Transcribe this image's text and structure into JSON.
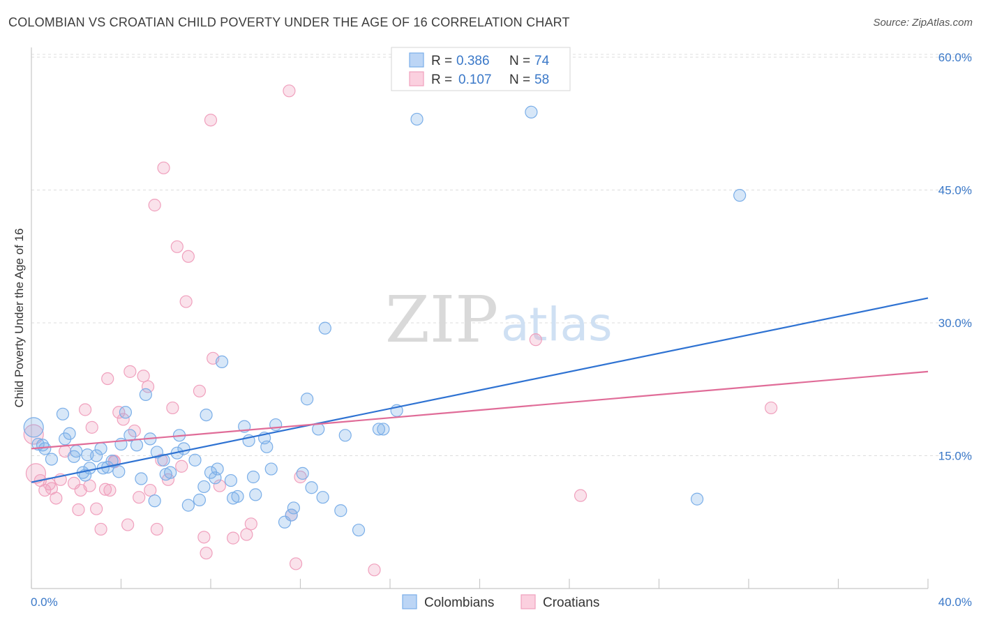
{
  "header": {
    "title": "COLOMBIAN VS CROATIAN CHILD POVERTY UNDER THE AGE OF 16 CORRELATION CHART",
    "source": "Source: ZipAtlas.com"
  },
  "watermark": {
    "zip": "ZIP",
    "atlas": "atlas"
  },
  "legend": {
    "items": [
      {
        "r_label": "R =",
        "r_value": "0.386",
        "n_label": "N =",
        "n_value": "74"
      },
      {
        "r_label": "R =",
        "r_value": "0.107",
        "n_label": "N =",
        "n_value": "58"
      }
    ]
  },
  "bottom_legend": {
    "colombians": "Colombians",
    "croatians": "Croatians"
  },
  "chart_data": {
    "type": "scatter",
    "title": "COLOMBIAN VS CROATIAN CHILD POVERTY UNDER THE AGE OF 16 CORRELATION CHART",
    "xlabel": "",
    "ylabel": "Child Poverty Under the Age of 16",
    "xlim": [
      0,
      40
    ],
    "ylim": [
      0,
      61.5
    ],
    "x_tick_labels": [
      "0.0%",
      "40.0%"
    ],
    "y_ticks": [
      15,
      30,
      45,
      60
    ],
    "y_tick_labels": [
      "15.0%",
      "30.0%",
      "45.0%",
      "60.0%"
    ],
    "grid": true,
    "legend_position": "top-center",
    "colors": {
      "colombians": "#7aaee8",
      "croatians": "#f0a0bd",
      "colombians_line": "#2e72d2",
      "croatians_line": "#e06c98"
    },
    "series": [
      {
        "name": "Colombians",
        "r": 0.386,
        "n": 74,
        "trend": {
          "x": [
            0,
            40
          ],
          "y": [
            12.0,
            32.8
          ]
        },
        "points": [
          [
            0.1,
            18.2
          ],
          [
            0.3,
            16.3
          ],
          [
            0.5,
            16.2
          ],
          [
            0.6,
            15.8
          ],
          [
            0.9,
            14.6
          ],
          [
            1.4,
            19.7
          ],
          [
            1.5,
            16.9
          ],
          [
            1.7,
            17.5
          ],
          [
            1.9,
            14.9
          ],
          [
            2.0,
            15.5
          ],
          [
            2.3,
            13.1
          ],
          [
            2.4,
            12.8
          ],
          [
            2.5,
            15.1
          ],
          [
            2.6,
            13.6
          ],
          [
            2.9,
            15.0
          ],
          [
            3.1,
            15.8
          ],
          [
            3.2,
            13.6
          ],
          [
            3.4,
            13.7
          ],
          [
            3.6,
            14.4
          ],
          [
            3.9,
            13.2
          ],
          [
            4.0,
            16.3
          ],
          [
            4.2,
            19.9
          ],
          [
            4.4,
            17.3
          ],
          [
            4.7,
            16.2
          ],
          [
            4.9,
            12.4
          ],
          [
            5.1,
            21.9
          ],
          [
            5.3,
            16.9
          ],
          [
            5.5,
            9.9
          ],
          [
            5.6,
            15.4
          ],
          [
            5.9,
            14.5
          ],
          [
            6.0,
            12.9
          ],
          [
            6.2,
            13.1
          ],
          [
            6.5,
            15.3
          ],
          [
            6.6,
            17.3
          ],
          [
            6.8,
            15.8
          ],
          [
            7.0,
            9.4
          ],
          [
            7.3,
            14.5
          ],
          [
            7.5,
            10.0
          ],
          [
            7.7,
            11.5
          ],
          [
            7.8,
            19.6
          ],
          [
            8.0,
            13.1
          ],
          [
            8.2,
            12.5
          ],
          [
            8.3,
            13.5
          ],
          [
            8.5,
            25.6
          ],
          [
            8.9,
            12.2
          ],
          [
            9.0,
            10.2
          ],
          [
            9.2,
            10.4
          ],
          [
            9.5,
            18.3
          ],
          [
            9.7,
            16.7
          ],
          [
            9.9,
            12.6
          ],
          [
            10.0,
            10.6
          ],
          [
            10.4,
            17.0
          ],
          [
            10.5,
            16.0
          ],
          [
            10.7,
            13.5
          ],
          [
            10.9,
            18.5
          ],
          [
            11.3,
            7.5
          ],
          [
            11.6,
            8.3
          ],
          [
            11.7,
            9.1
          ],
          [
            12.1,
            13.0
          ],
          [
            12.3,
            21.4
          ],
          [
            12.5,
            11.4
          ],
          [
            12.8,
            18.0
          ],
          [
            13.0,
            10.3
          ],
          [
            13.1,
            29.4
          ],
          [
            13.8,
            8.8
          ],
          [
            14.0,
            17.3
          ],
          [
            14.6,
            6.6
          ],
          [
            15.5,
            18.0
          ],
          [
            15.7,
            18.0
          ],
          [
            16.3,
            20.1
          ],
          [
            17.2,
            53.0
          ],
          [
            22.3,
            53.8
          ],
          [
            29.7,
            10.1
          ],
          [
            31.6,
            44.4
          ]
        ]
      },
      {
        "name": "Croatians",
        "r": 0.107,
        "n": 58,
        "trend": {
          "x": [
            0,
            40
          ],
          "y": [
            15.8,
            24.5
          ]
        },
        "points": [
          [
            0.1,
            17.4
          ],
          [
            0.2,
            13.0
          ],
          [
            0.4,
            12.2
          ],
          [
            0.6,
            11.1
          ],
          [
            0.8,
            11.8
          ],
          [
            0.9,
            11.3
          ],
          [
            1.1,
            10.2
          ],
          [
            1.3,
            12.3
          ],
          [
            1.5,
            15.5
          ],
          [
            1.9,
            11.9
          ],
          [
            2.1,
            8.9
          ],
          [
            2.2,
            11.1
          ],
          [
            2.4,
            20.2
          ],
          [
            2.6,
            11.6
          ],
          [
            2.7,
            18.2
          ],
          [
            2.9,
            9.0
          ],
          [
            3.1,
            6.7
          ],
          [
            3.3,
            11.2
          ],
          [
            3.4,
            23.7
          ],
          [
            3.5,
            11.1
          ],
          [
            3.7,
            14.4
          ],
          [
            3.9,
            19.9
          ],
          [
            4.1,
            19.1
          ],
          [
            4.3,
            7.2
          ],
          [
            4.4,
            24.5
          ],
          [
            4.6,
            17.8
          ],
          [
            4.8,
            10.3
          ],
          [
            5.0,
            24.0
          ],
          [
            5.2,
            22.8
          ],
          [
            5.3,
            11.1
          ],
          [
            5.5,
            43.3
          ],
          [
            5.6,
            6.7
          ],
          [
            5.8,
            14.5
          ],
          [
            5.9,
            47.5
          ],
          [
            6.1,
            12.3
          ],
          [
            6.3,
            20.4
          ],
          [
            6.5,
            38.6
          ],
          [
            6.7,
            13.8
          ],
          [
            6.9,
            32.4
          ],
          [
            7.0,
            37.5
          ],
          [
            7.5,
            22.3
          ],
          [
            7.7,
            5.8
          ],
          [
            7.8,
            4.0
          ],
          [
            8.0,
            52.9
          ],
          [
            8.1,
            26.0
          ],
          [
            8.4,
            11.6
          ],
          [
            9.0,
            5.7
          ],
          [
            9.6,
            6.1
          ],
          [
            9.8,
            7.3
          ],
          [
            11.6,
            8.3
          ],
          [
            11.8,
            2.8
          ],
          [
            12.0,
            12.6
          ],
          [
            11.5,
            56.2
          ],
          [
            15.3,
            2.1
          ],
          [
            22.5,
            28.1
          ],
          [
            24.5,
            10.5
          ],
          [
            33.0,
            20.4
          ],
          [
            3.7,
            14.3
          ]
        ]
      }
    ]
  }
}
